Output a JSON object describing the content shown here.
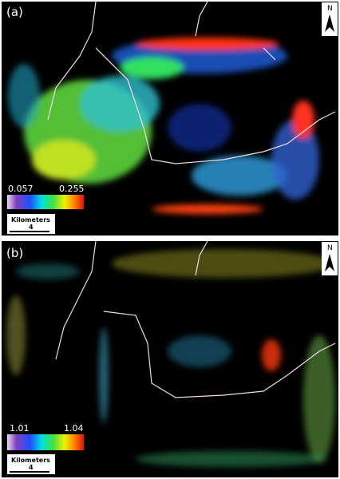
{
  "panels": [
    {
      "label": "(a)",
      "colorbar": {
        "min": "0.057",
        "max": "0.255"
      },
      "scalebar": {
        "title": "Kilometers",
        "value": "4"
      },
      "north": "N"
    },
    {
      "label": "(b)",
      "colorbar": {
        "min": "1.01",
        "max": "1.04"
      },
      "scalebar": {
        "title": "Kilometers",
        "value": "4"
      },
      "north": "N"
    }
  ]
}
